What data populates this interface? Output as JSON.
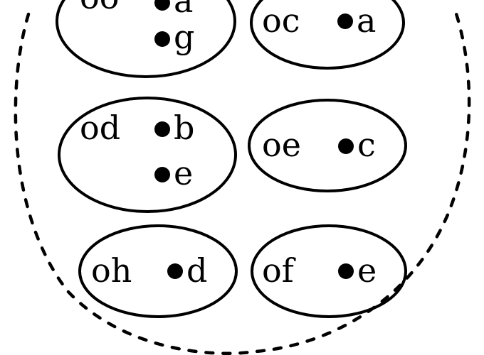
{
  "groups": [
    {
      "id": "og",
      "open_label": "oo",
      "closed": [
        "a",
        "g"
      ]
    },
    {
      "id": "oc",
      "open_label": "oc",
      "closed": [
        "a"
      ]
    },
    {
      "id": "od",
      "open_label": "od",
      "closed": [
        "b",
        "e"
      ]
    },
    {
      "id": "oe",
      "open_label": "oe",
      "closed": [
        "c"
      ]
    },
    {
      "id": "oh",
      "open_label": "oh",
      "closed": [
        "d"
      ]
    },
    {
      "id": "of",
      "open_label": "of",
      "closed": [
        "e"
      ]
    }
  ],
  "colors": {
    "stroke": "#000000",
    "background": "#ffffff"
  }
}
